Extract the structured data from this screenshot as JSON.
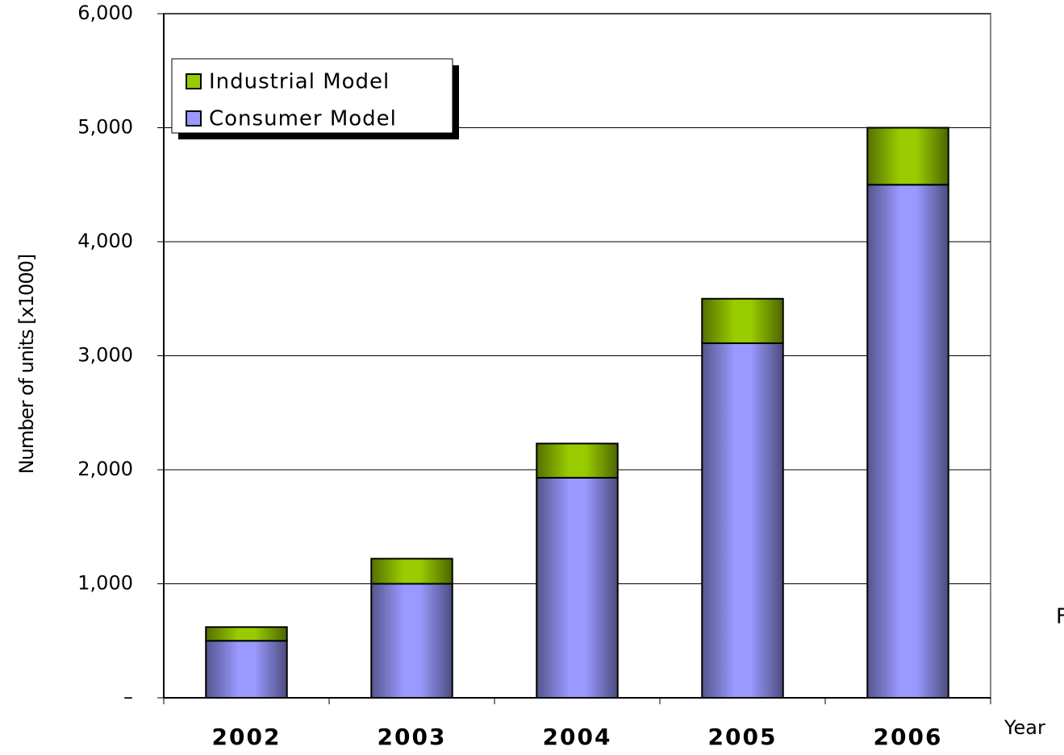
{
  "chart_data": {
    "type": "stacked-bar",
    "categories": [
      "2002",
      "2003",
      "2004",
      "2005",
      "2006"
    ],
    "series": [
      {
        "name": "Consumer Model",
        "color": "#9999ff",
        "values": [
          500,
          1000,
          1930,
          3110,
          4500
        ]
      },
      {
        "name": "Industrial Model",
        "color": "#99cc00",
        "values": [
          120,
          220,
          300,
          390,
          500
        ]
      }
    ],
    "y_label": "Number of units [x1000]",
    "x_label": "Year",
    "annotation": "F",
    "ylim": [
      0,
      6000
    ],
    "yticks": [
      {
        "value": 0,
        "label": "–"
      },
      {
        "value": 1000,
        "label": "1,000"
      },
      {
        "value": 2000,
        "label": "2,000"
      },
      {
        "value": 3000,
        "label": "3,000"
      },
      {
        "value": 4000,
        "label": "4,000"
      },
      {
        "value": 5000,
        "label": "5,000"
      },
      {
        "value": 6000,
        "label": "6,000"
      }
    ],
    "grid": true,
    "legend": "top-left"
  }
}
